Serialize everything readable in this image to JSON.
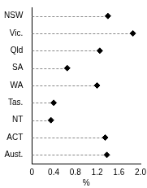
{
  "chart_data": {
    "type": "dot",
    "orientation": "horizontal",
    "categories": [
      "NSW",
      "Vic.",
      "Qld",
      "SA",
      "WA",
      "Tas.",
      "NT",
      "ACT",
      "Aust."
    ],
    "values": [
      1.4,
      1.86,
      1.25,
      0.65,
      1.2,
      0.4,
      0.35,
      1.35,
      1.38
    ],
    "color": "#000000",
    "marker": "diamond",
    "xlabel": "%",
    "xlim": [
      0,
      2.0
    ],
    "xticks": [
      0,
      0.4,
      0.8,
      1.2,
      1.6,
      {
        "value": 2.0,
        "label": "2.0"
      }
    ],
    "grid": false
  }
}
